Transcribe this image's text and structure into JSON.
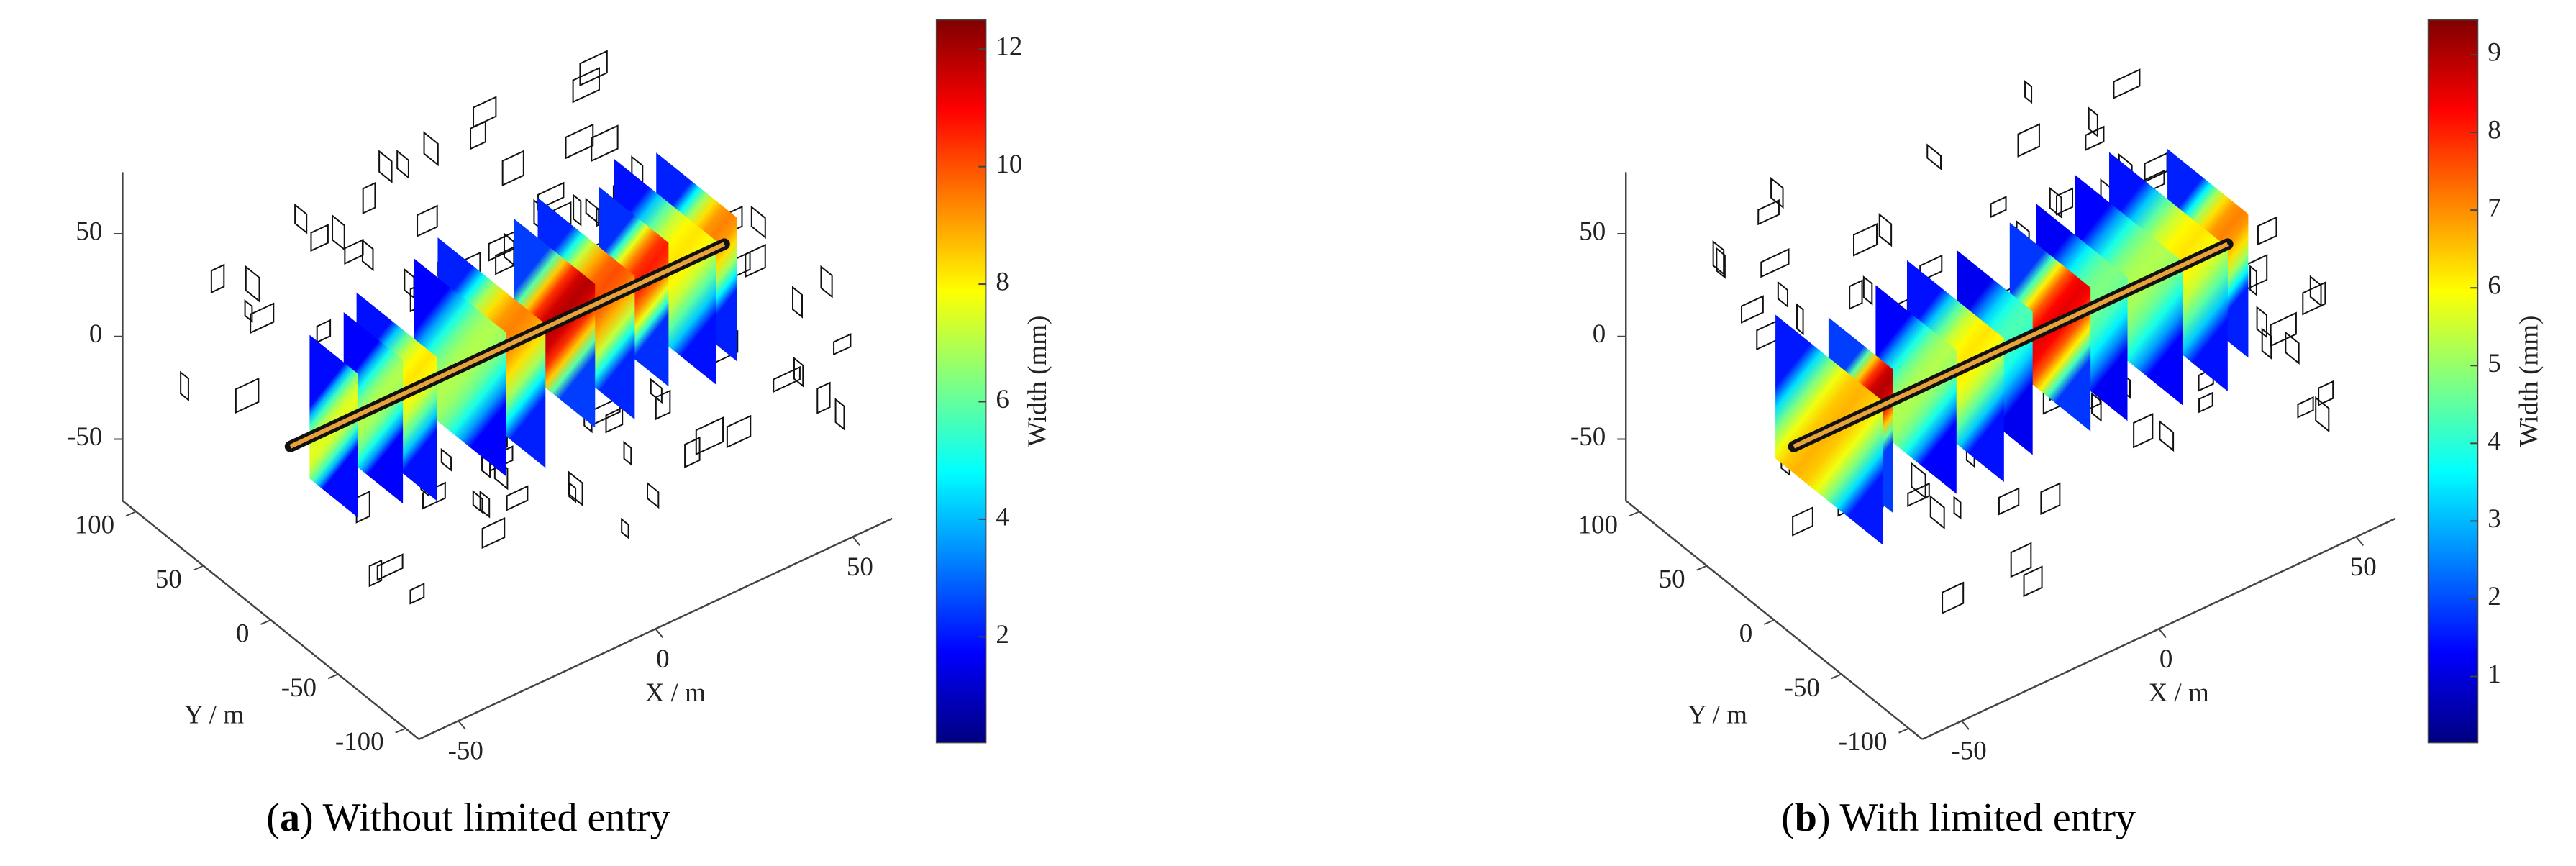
{
  "chart_data": [
    {
      "type": "fracture3d",
      "caption_parts": [
        "(",
        "a",
        ") Without limited entry"
      ],
      "xlabel": "X / m",
      "ylabel": "Y / m",
      "xlim": [
        -60,
        60
      ],
      "ylim": [
        -110,
        110
      ],
      "zlim": [
        -80,
        80
      ],
      "xticks": [
        -50,
        0,
        50
      ],
      "yticks": [
        -100,
        -50,
        0,
        50,
        100
      ],
      "zticks": [
        -50,
        0,
        50
      ],
      "colorbar_label": "Width (mm)",
      "clim": [
        0.2,
        12.5
      ],
      "cticks": [
        2,
        4,
        6,
        8,
        10,
        12
      ],
      "colormap": "jet"
    },
    {
      "type": "fracture3d",
      "caption_parts": [
        "(",
        "b",
        ") With limited entry"
      ],
      "xlabel": "X / m",
      "ylabel": "Y / m",
      "xlim": [
        -60,
        60
      ],
      "ylim": [
        -110,
        110
      ],
      "zlim": [
        -80,
        80
      ],
      "xticks": [
        -50,
        0,
        50
      ],
      "yticks": [
        -100,
        -50,
        0,
        50,
        100
      ],
      "zticks": [
        -50,
        0,
        50
      ],
      "colorbar_label": "Width (mm)",
      "clim": [
        0.15,
        9.45
      ],
      "cticks": [
        1,
        2,
        3,
        4,
        5,
        6,
        7,
        8,
        9
      ],
      "colormap": "jet"
    }
  ]
}
